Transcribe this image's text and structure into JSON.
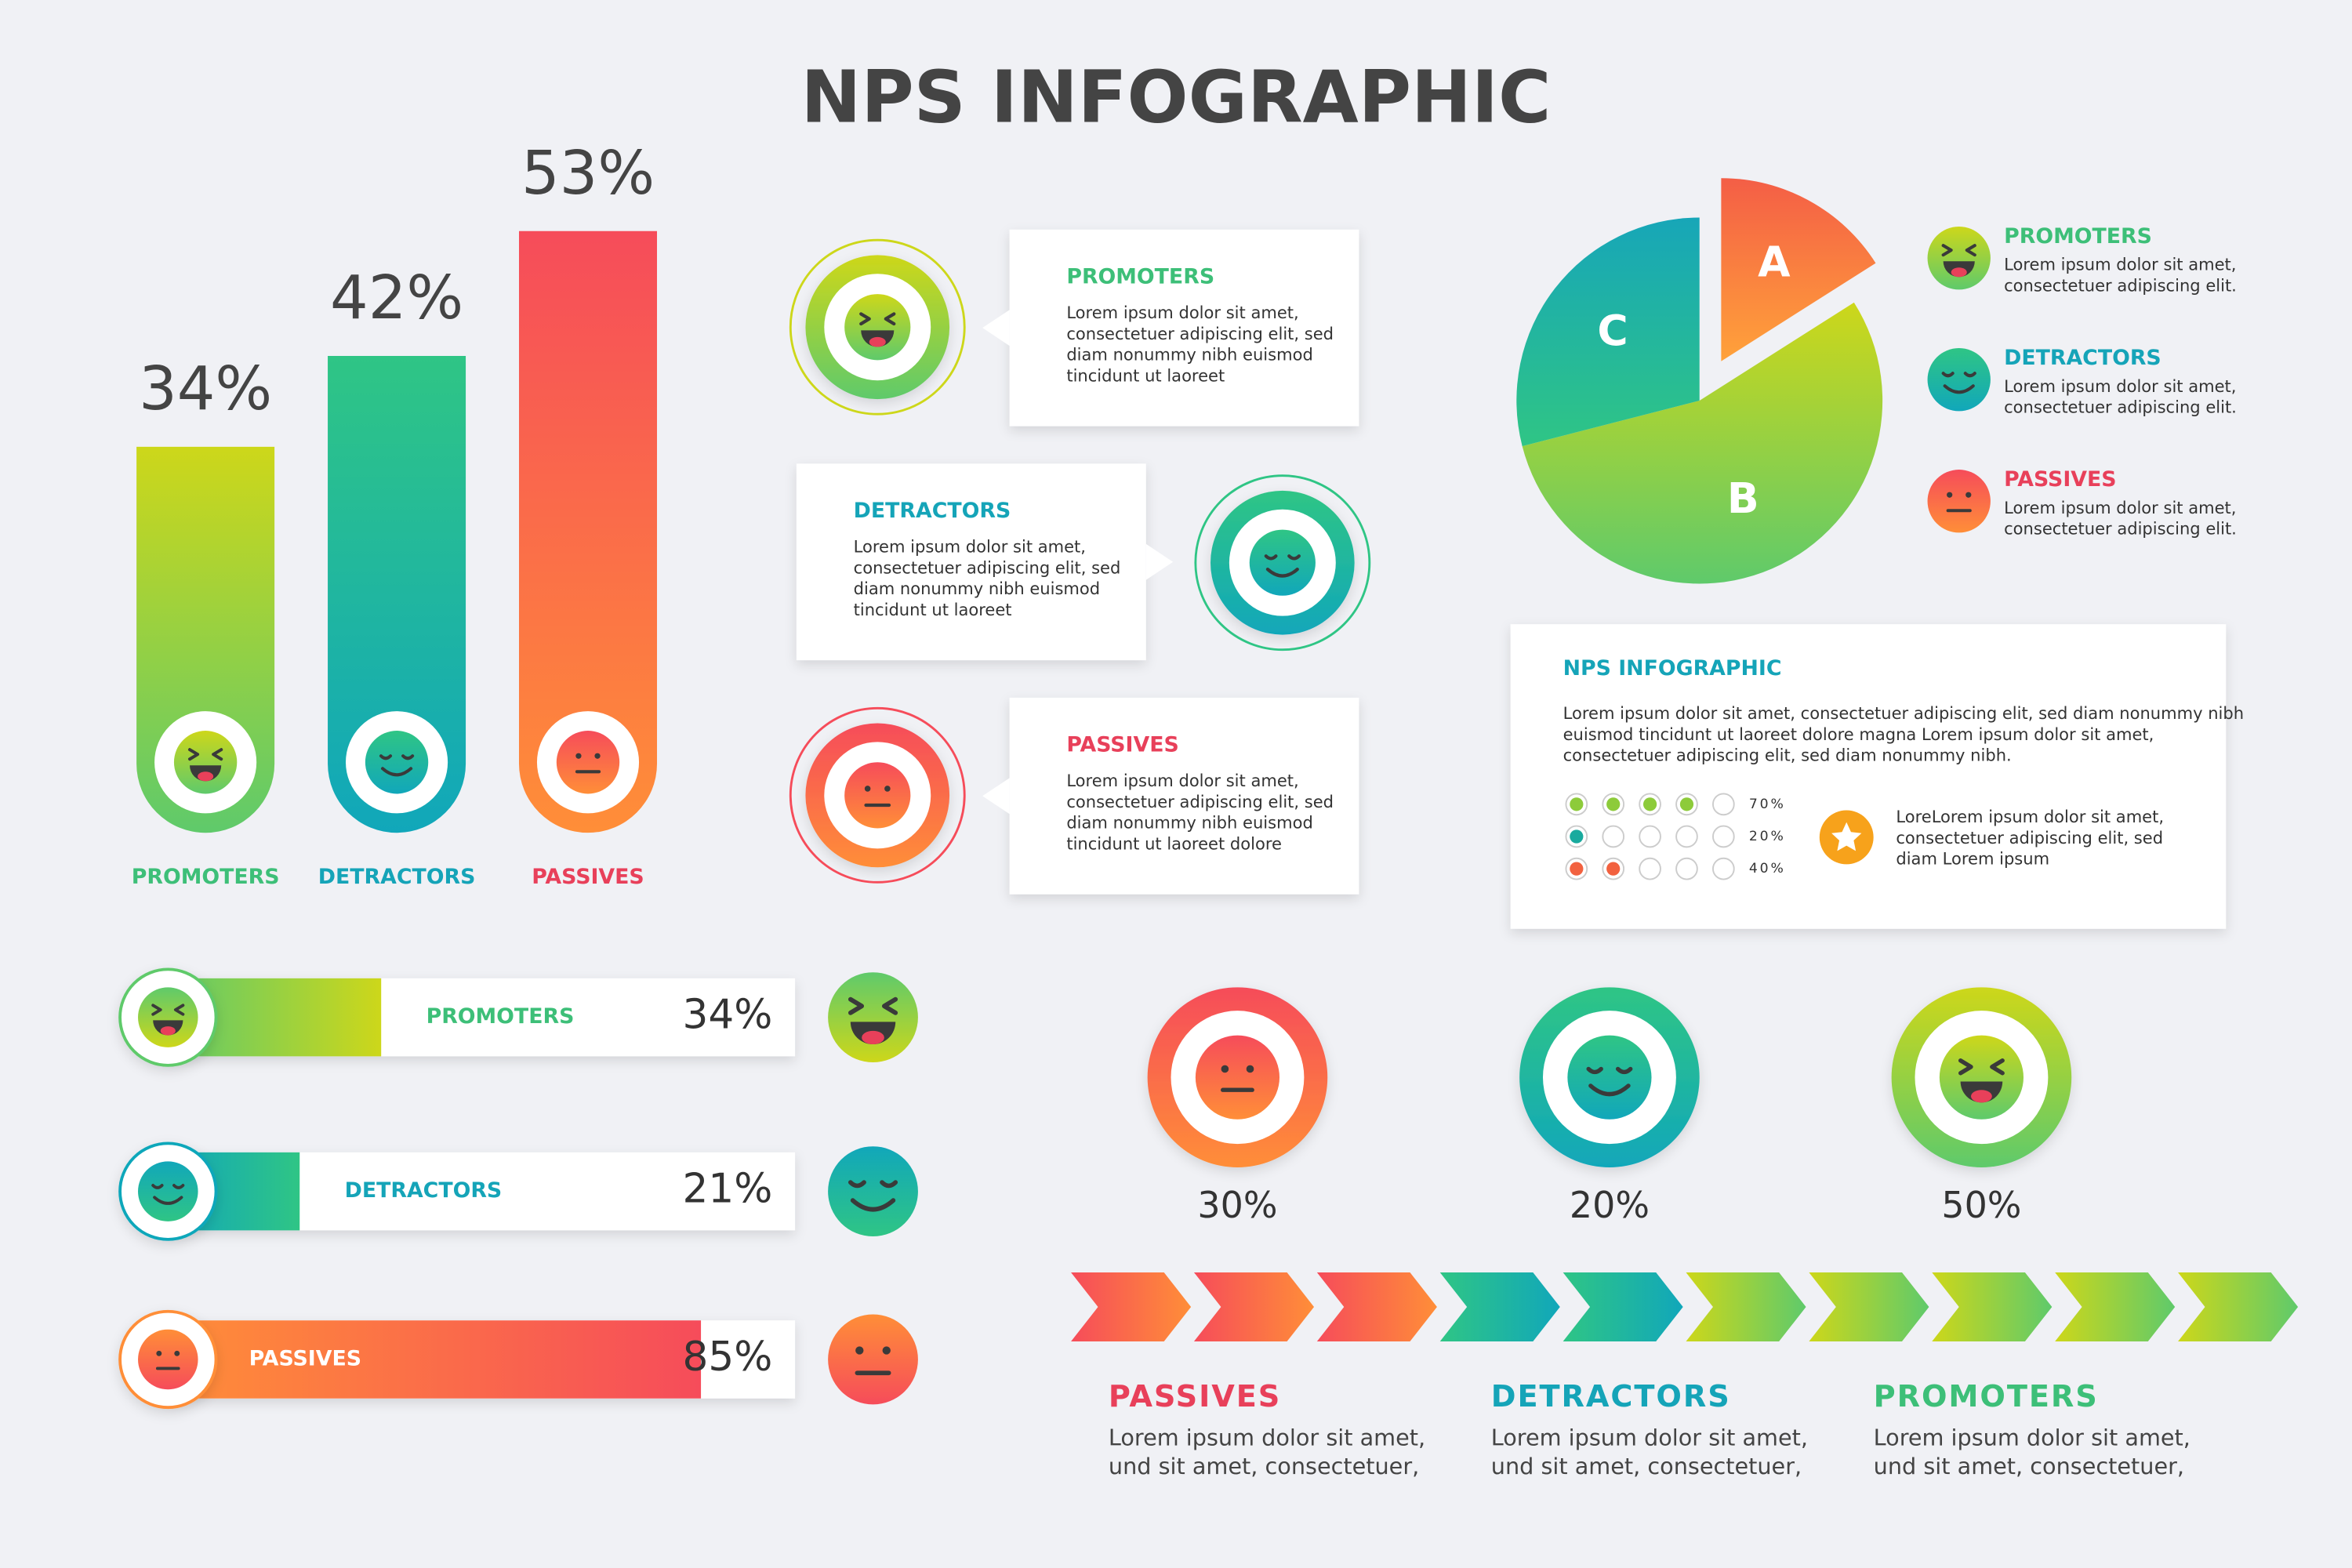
{
  "title": "NPS INFOGRAPHIC",
  "chart_data": [
    {
      "type": "bar",
      "categories": [
        "PROMOTERS",
        "DETRACTORS",
        "PASSIVES"
      ],
      "values": [
        34,
        42,
        53
      ],
      "value_labels": [
        "34%",
        "42%",
        "53%"
      ],
      "colors": [
        [
          "#cdd71a",
          "#5fca6b"
        ],
        [
          "#2fc585",
          "#11a7ba"
        ],
        [
          "#f64c5a",
          "#ff8e38"
        ]
      ],
      "label_colors": [
        "#3dbf78",
        "#15a4b8",
        "#e8405a"
      ]
    },
    {
      "type": "hbar",
      "categories": [
        "PROMOTERS",
        "DETRACTORS",
        "PASSIVES"
      ],
      "values": [
        34,
        21,
        85
      ],
      "value_labels": [
        "34%",
        "21%",
        "85%"
      ],
      "xlim": [
        0,
        100
      ],
      "colors": [
        [
          "#5fca6b",
          "#cdd71a"
        ],
        [
          "#11a7ba",
          "#2fc585"
        ],
        [
          "#ff8e38",
          "#f64c5a"
        ]
      ],
      "label_colors": [
        "#3dbf78",
        "#15a4b8",
        "#e8405a"
      ]
    },
    {
      "type": "pie",
      "categories": [
        "A",
        "B",
        "C"
      ],
      "values": [
        16,
        55,
        29
      ],
      "colors": [
        [
          "#f45e46",
          "#ffa23a"
        ],
        [
          "#cdd71a",
          "#5fca6b"
        ],
        [
          "#17a6b8",
          "#2fc585"
        ]
      ],
      "legend": [
        {
          "name": "PROMOTERS",
          "color": "#3dbf78",
          "lines": [
            "Lorem ipsum dolor sit amet,",
            "consectetuer adipiscing elit."
          ]
        },
        {
          "name": "DETRACTORS",
          "color": "#15a4b8",
          "lines": [
            "Lorem ipsum dolor sit amet,",
            "consectetuer adipiscing elit."
          ]
        },
        {
          "name": "PASSIVES",
          "color": "#e8405a",
          "lines": [
            "Lorem ipsum dolor sit amet,",
            "consectetuer adipiscing elit."
          ]
        }
      ]
    },
    {
      "type": "dots",
      "values": [
        70,
        20,
        40
      ],
      "value_labels": [
        "70%",
        "20%",
        "40%"
      ],
      "colors": [
        "#8dcb3a",
        "#19aa9e",
        "#f2613f"
      ]
    },
    {
      "type": "ring",
      "categories": [
        "PASSIVES",
        "DETRACTORS",
        "PROMOTERS"
      ],
      "values": [
        30,
        20,
        50
      ],
      "value_labels": [
        "30%",
        "20%",
        "50%"
      ],
      "colors": [
        [
          "#f64c5a",
          "#ff8e38"
        ],
        [
          "#2fc585",
          "#11a7ba"
        ],
        [
          "#cdd71a",
          "#5fca6b"
        ]
      ],
      "label_colors": [
        "#e8405a",
        "#15a4b8",
        "#3dbf78"
      ],
      "descriptions": [
        [
          "Lorem ipsum dolor sit amet,",
          "und sit amet, consectetuer,"
        ],
        [
          "Lorem ipsum dolor sit amet,",
          "und sit amet, consectetuer,"
        ],
        [
          "Lorem ipsum dolor sit amet,",
          "und sit amet, consectetuer,"
        ]
      ]
    }
  ],
  "cards": [
    {
      "title": "PROMOTERS",
      "lines": [
        "Lorem ipsum dolor sit amet,",
        "consectetuer adipiscing elit, sed",
        "diam nonummy nibh euismod",
        "tincidunt ut laoreet"
      ]
    },
    {
      "title": "DETRACTORS",
      "lines": [
        "Lorem ipsum dolor sit amet,",
        "consectetuer adipiscing elit, sed",
        "diam nonummy nibh euismod",
        "tincidunt ut laoreet"
      ]
    },
    {
      "title": "PASSIVES",
      "lines": [
        "Lorem ipsum dolor sit amet,",
        "consectetuer adipiscing elit, sed",
        "diam nonummy nibh euismod",
        "tincidunt ut laoreet dolore"
      ]
    }
  ],
  "info": {
    "title": "NPS INFOGRAPHIC",
    "lines": [
      "Lorem ipsum dolor sit amet, consectetuer adipiscing elit, sed diam nonummy nibh",
      "euismod tincidunt ut laoreet dolore magna Lorem ipsum dolor sit amet,",
      "consectetuer adipiscing elit, sed diam nonummy nibh."
    ],
    "note": [
      "LoreLorem ipsum dolor sit amet,",
      "consectetuer adipiscing elit, sed",
      "diam Lorem ipsum"
    ]
  }
}
